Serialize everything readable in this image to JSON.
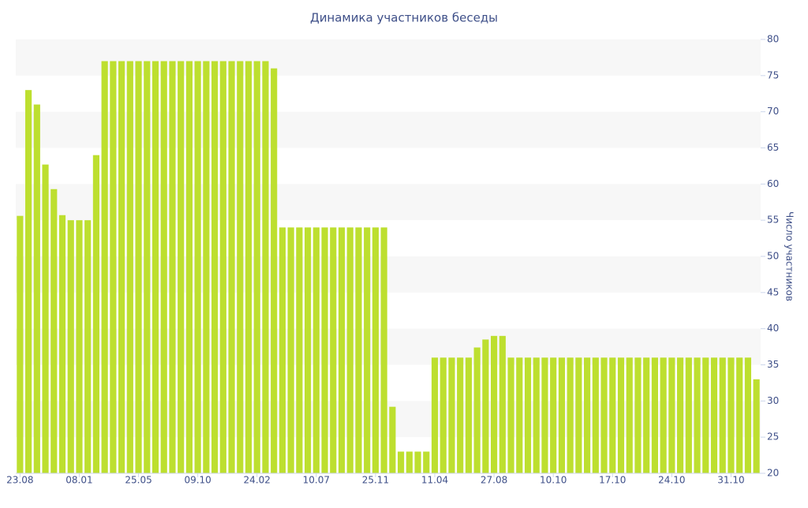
{
  "chart_data": {
    "type": "bar",
    "title": "Динамика участников беседы",
    "y_label": "Число участников",
    "categories": [
      "23.08",
      null,
      null,
      null,
      null,
      null,
      null,
      "08.01",
      null,
      null,
      null,
      null,
      null,
      null,
      "25.05",
      null,
      null,
      null,
      null,
      null,
      null,
      "09.10",
      null,
      null,
      null,
      null,
      null,
      null,
      "24.02",
      null,
      null,
      null,
      null,
      null,
      null,
      "10.07",
      null,
      null,
      null,
      null,
      null,
      null,
      "25.11",
      null,
      null,
      null,
      null,
      null,
      null,
      "11.04",
      null,
      null,
      null,
      null,
      null,
      null,
      "27.08",
      null,
      null,
      null,
      null,
      null,
      null,
      "10.10",
      null,
      null,
      null,
      null,
      null,
      null,
      "17.10",
      null,
      null,
      null,
      null,
      null,
      null,
      "24.10",
      null,
      null,
      null,
      null,
      null,
      null,
      "31.10",
      null,
      null,
      null
    ],
    "values": [
      55.6,
      73,
      71,
      62.7,
      59.3,
      55.7,
      55,
      55,
      55,
      64,
      77,
      77,
      77,
      77,
      77,
      77,
      77,
      77,
      77,
      77,
      77,
      77,
      77,
      77,
      77,
      77,
      77,
      77,
      77,
      77,
      76,
      54,
      54,
      54,
      54,
      54,
      54,
      54,
      54,
      54,
      54,
      54,
      54,
      54,
      29.2,
      23,
      23,
      23,
      23,
      36,
      36,
      36,
      36,
      36,
      37.4,
      38.5,
      39,
      39,
      36,
      36,
      36,
      36,
      36,
      36,
      36,
      36,
      36,
      36,
      36,
      36,
      36,
      36,
      36,
      36,
      36,
      36,
      36,
      36,
      36,
      36,
      36,
      36,
      36,
      36,
      36,
      36,
      36,
      33
    ],
    "color": "#bddf2f",
    "ylim": [
      20,
      80
    ],
    "yticks": [
      20,
      25,
      30,
      35,
      40,
      45,
      50,
      55,
      60,
      65,
      70,
      75,
      80
    ],
    "grid": true
  }
}
